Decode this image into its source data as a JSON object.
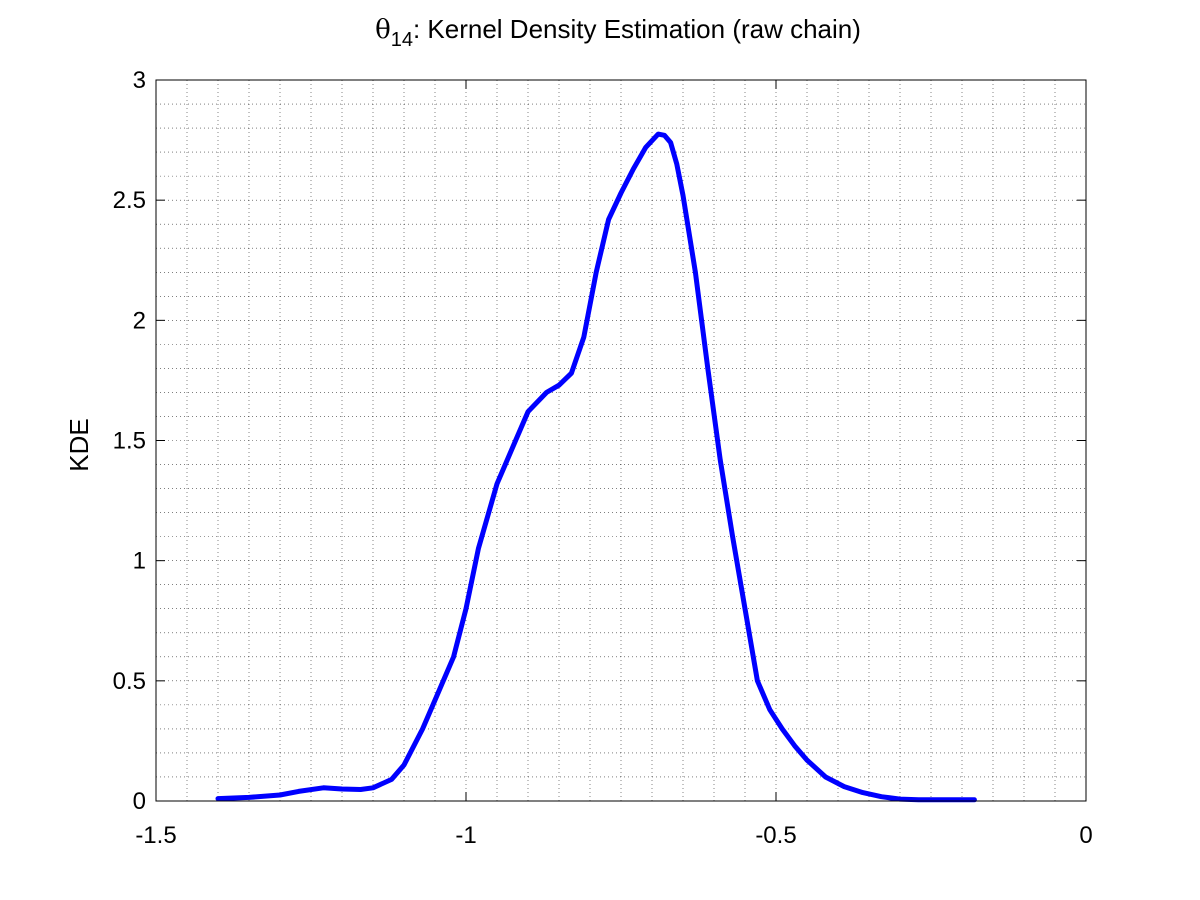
{
  "chart_data": {
    "type": "line",
    "title": {
      "symbol": "θ",
      "subscript": "14",
      "text": ": Kernel Density Estimation (raw chain)"
    },
    "xlabel": "",
    "ylabel": "KDE",
    "xlim": [
      -1.5,
      0
    ],
    "ylim": [
      0,
      3
    ],
    "x_ticks": [
      -1.5,
      -1,
      -0.5,
      0
    ],
    "x_tick_labels": [
      "-1.5",
      "-1",
      "-0.5",
      "0"
    ],
    "y_ticks": [
      0,
      0.5,
      1,
      1.5,
      2,
      2.5,
      3
    ],
    "y_tick_labels": [
      "0",
      "0.5",
      "1",
      "1.5",
      "2",
      "2.5",
      "3"
    ],
    "grid": true,
    "minor_grid": true,
    "series": [
      {
        "color": "#0000ff",
        "x": [
          -1.4,
          -1.35,
          -1.3,
          -1.27,
          -1.23,
          -1.2,
          -1.17,
          -1.15,
          -1.12,
          -1.1,
          -1.07,
          -1.05,
          -1.02,
          -1.0,
          -0.98,
          -0.95,
          -0.92,
          -0.9,
          -0.87,
          -0.85,
          -0.83,
          -0.81,
          -0.79,
          -0.77,
          -0.75,
          -0.73,
          -0.71,
          -0.69,
          -0.68,
          -0.67,
          -0.66,
          -0.65,
          -0.63,
          -0.61,
          -0.59,
          -0.57,
          -0.55,
          -0.53,
          -0.51,
          -0.49,
          -0.47,
          -0.45,
          -0.42,
          -0.39,
          -0.36,
          -0.33,
          -0.3,
          -0.27,
          -0.24,
          -0.21,
          -0.18
        ],
        "y": [
          0.01,
          0.015,
          0.025,
          0.04,
          0.055,
          0.05,
          0.048,
          0.055,
          0.09,
          0.15,
          0.3,
          0.42,
          0.6,
          0.8,
          1.05,
          1.32,
          1.5,
          1.62,
          1.7,
          1.73,
          1.78,
          1.93,
          2.2,
          2.42,
          2.53,
          2.63,
          2.72,
          2.775,
          2.77,
          2.74,
          2.65,
          2.52,
          2.2,
          1.8,
          1.42,
          1.1,
          0.8,
          0.5,
          0.38,
          0.3,
          0.23,
          0.17,
          0.1,
          0.06,
          0.035,
          0.018,
          0.008,
          0.005,
          0.005,
          0.005,
          0.005
        ]
      }
    ]
  }
}
